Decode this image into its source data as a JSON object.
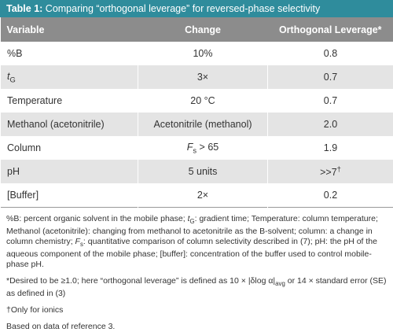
{
  "title": [
    {
      "text": "Table 1:",
      "style": "bold"
    },
    {
      "text": " Comparing “orthogonal leverage” for reversed-phase selectivity"
    }
  ],
  "table": {
    "header": [
      "Variable",
      "Change",
      "Orthogonal Leverage*"
    ],
    "rows": [
      [
        "%B",
        "10%",
        "0.8"
      ],
      [
        [
          {
            "text": "t",
            "style": "italic"
          },
          {
            "text": "G",
            "style": "sub"
          }
        ],
        "3×",
        "0.7"
      ],
      [
        "Temperature",
        "20 °C",
        "0.7"
      ],
      [
        "Methanol (acetonitrile)",
        "Acetonitrile (methanol)",
        "2.0"
      ],
      [
        "Column",
        [
          {
            "text": "F",
            "style": "italic"
          },
          {
            "text": "s",
            "style": "sub"
          },
          {
            "text": " > 65"
          }
        ],
        "1.9"
      ],
      [
        "pH",
        "5 units",
        [
          {
            "text": ">>7"
          },
          {
            "text": "†",
            "style": "sup"
          }
        ]
      ],
      [
        "[Buffer]",
        "2×",
        "0.2"
      ]
    ]
  },
  "footnotes": [
    [
      {
        "text": "%B: percent organic solvent in the mobile phase; "
      },
      {
        "text": "t",
        "style": "italic"
      },
      {
        "text": "G",
        "style": "sub"
      },
      {
        "text": ": gradient time; Temperature: column temperature; Methanol (acetonitrile): changing from methanol to acetonitrile as the B-solvent; column: a change in column chemistry; "
      },
      {
        "text": "F",
        "style": "italic"
      },
      {
        "text": "s",
        "style": "sub"
      },
      {
        "text": ": quantitative comparison of column selectivity described in (7); pH: the pH of the aqueous component of the mobile phase; [buffer]: concentration of the buffer used to control mobile-phase pH."
      }
    ],
    [
      {
        "text": "*Desired to be ≥1.0; here “orthogonal leverage” is defined as 10 × |δlog α|"
      },
      {
        "text": "avg",
        "style": "sub"
      },
      {
        "text": " or 14 × standard error (SE) as defined in (3)"
      }
    ],
    [
      {
        "text": "†Only for ionics"
      }
    ],
    [
      {
        "text": "Based on data of reference 3."
      }
    ]
  ]
}
